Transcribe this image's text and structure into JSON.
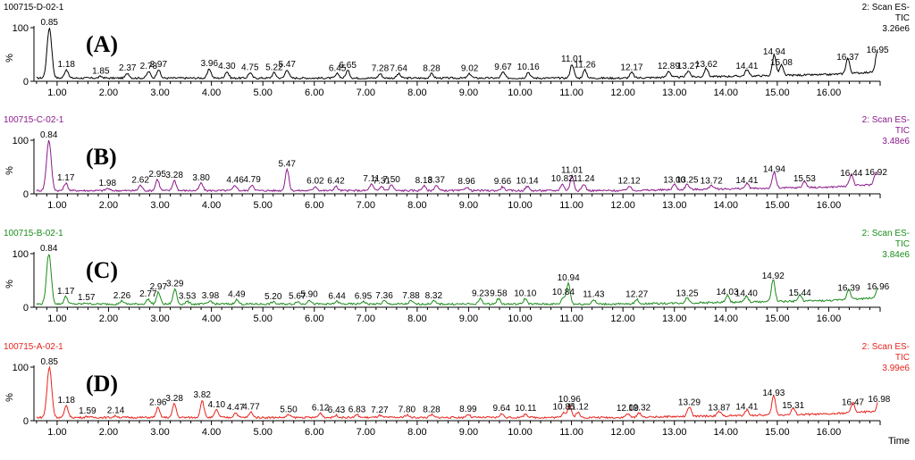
{
  "chart_data": {
    "type": "line",
    "x_axis": {
      "label": "Time",
      "min": 0.55,
      "max": 17.0,
      "ticks": [
        "1.00",
        "2.00",
        "3.00",
        "4.00",
        "5.00",
        "6.00",
        "7.00",
        "8.00",
        "9.00",
        "10.00",
        "11.00",
        "12.00",
        "13.00",
        "14.00",
        "15.00",
        "16.00"
      ]
    },
    "y_axis": {
      "label": "%",
      "ticks": [
        "0",
        "100"
      ],
      "range": [
        0,
        100
      ]
    },
    "panels": [
      {
        "sample": "100715-D-02-1",
        "letter": "(A)",
        "scan_line1": "2: Scan ES-",
        "scan_line2": "TIC",
        "intensity": "3.26e6",
        "color": "#000000",
        "peaks": [
          {
            "t": 0.85,
            "y": 100,
            "label": "0.85"
          },
          {
            "t": 1.18,
            "y": 22,
            "label": "1.18"
          },
          {
            "t": 1.85,
            "y": 9,
            "label": "1.85"
          },
          {
            "t": 2.37,
            "y": 15,
            "label": "2.37"
          },
          {
            "t": 2.78,
            "y": 18,
            "label": "2.78"
          },
          {
            "t": 2.97,
            "y": 22,
            "label": "2.97"
          },
          {
            "t": 3.96,
            "y": 23,
            "label": "3.96"
          },
          {
            "t": 4.3,
            "y": 18,
            "label": "4.30"
          },
          {
            "t": 4.75,
            "y": 16,
            "label": "4.75"
          },
          {
            "t": 5.22,
            "y": 16,
            "label": "5.22"
          },
          {
            "t": 5.47,
            "y": 22,
            "label": "5.47"
          },
          {
            "t": 6.45,
            "y": 14,
            "label": "6.45"
          },
          {
            "t": 6.65,
            "y": 20,
            "label": "6.65"
          },
          {
            "t": 7.28,
            "y": 14,
            "label": "7.28"
          },
          {
            "t": 7.64,
            "y": 14,
            "label": "7.64"
          },
          {
            "t": 8.28,
            "y": 14,
            "label": "8.28"
          },
          {
            "t": 9.02,
            "y": 14,
            "label": "9.02"
          },
          {
            "t": 9.67,
            "y": 17,
            "label": "9.67"
          },
          {
            "t": 10.16,
            "y": 17,
            "label": "10.16"
          },
          {
            "t": 11.01,
            "y": 32,
            "label": "11.01"
          },
          {
            "t": 11.26,
            "y": 21,
            "label": "11.26"
          },
          {
            "t": 12.17,
            "y": 16,
            "label": "12.17"
          },
          {
            "t": 12.89,
            "y": 18,
            "label": "12.89"
          },
          {
            "t": 13.27,
            "y": 18,
            "label": "13.27"
          },
          {
            "t": 13.62,
            "y": 22,
            "label": "13.62"
          },
          {
            "t": 14.41,
            "y": 18,
            "label": "14.41"
          },
          {
            "t": 14.94,
            "y": 45,
            "label": "14.94"
          },
          {
            "t": 15.08,
            "y": 25,
            "label": "15.08"
          },
          {
            "t": 16.37,
            "y": 35,
            "label": "16.37"
          },
          {
            "t": 16.95,
            "y": 48,
            "label": "16.95"
          }
        ]
      },
      {
        "sample": "100715-C-02-1",
        "letter": "(B)",
        "scan_line1": "2: Scan ES-",
        "scan_line2": "TIC",
        "intensity": "3.48e6",
        "color": "#8b1a8b",
        "peaks": [
          {
            "t": 0.84,
            "y": 100,
            "label": "0.84"
          },
          {
            "t": 1.17,
            "y": 20,
            "label": "1.17"
          },
          {
            "t": 1.98,
            "y": 10,
            "label": "1.98"
          },
          {
            "t": 2.62,
            "y": 16,
            "label": "2.62"
          },
          {
            "t": 2.95,
            "y": 27,
            "label": "2.95"
          },
          {
            "t": 3.28,
            "y": 25,
            "label": "3.28"
          },
          {
            "t": 3.8,
            "y": 20,
            "label": "3.80"
          },
          {
            "t": 4.46,
            "y": 16,
            "label": "4.46"
          },
          {
            "t": 4.79,
            "y": 17,
            "label": "4.79"
          },
          {
            "t": 5.47,
            "y": 46,
            "label": "5.47"
          },
          {
            "t": 6.02,
            "y": 14,
            "label": "6.02"
          },
          {
            "t": 6.42,
            "y": 14,
            "label": "6.42"
          },
          {
            "t": 7.11,
            "y": 18,
            "label": "7.11"
          },
          {
            "t": 7.31,
            "y": 14,
            "label": "7.31"
          },
          {
            "t": 7.5,
            "y": 17,
            "label": "7.50"
          },
          {
            "t": 8.13,
            "y": 15,
            "label": "8.13"
          },
          {
            "t": 8.37,
            "y": 16,
            "label": "8.37"
          },
          {
            "t": 8.96,
            "y": 13,
            "label": "8.96"
          },
          {
            "t": 9.66,
            "y": 13,
            "label": "9.66"
          },
          {
            "t": 10.14,
            "y": 14,
            "label": "10.14"
          },
          {
            "t": 10.82,
            "y": 18,
            "label": "10.82"
          },
          {
            "t": 11.01,
            "y": 34,
            "label": "11.01"
          },
          {
            "t": 11.24,
            "y": 18,
            "label": "11.24"
          },
          {
            "t": 12.12,
            "y": 14,
            "label": "12.12"
          },
          {
            "t": 13.0,
            "y": 16,
            "label": "13.00"
          },
          {
            "t": 13.25,
            "y": 16,
            "label": "13.25"
          },
          {
            "t": 13.72,
            "y": 14,
            "label": "13.72"
          },
          {
            "t": 14.41,
            "y": 15,
            "label": "14.41"
          },
          {
            "t": 14.94,
            "y": 36,
            "label": "14.94"
          },
          {
            "t": 15.53,
            "y": 18,
            "label": "15.53"
          },
          {
            "t": 16.44,
            "y": 28,
            "label": "16.44"
          },
          {
            "t": 16.92,
            "y": 30,
            "label": "16.92"
          }
        ]
      },
      {
        "sample": "100715-B-02-1",
        "letter": "(C)",
        "scan_line1": "2: Scan ES-",
        "scan_line2": "TIC",
        "intensity": "3.84e6",
        "color": "#1a8c1a",
        "peaks": [
          {
            "t": 0.84,
            "y": 100,
            "label": "0.84"
          },
          {
            "t": 1.17,
            "y": 20,
            "label": "1.17"
          },
          {
            "t": 1.57,
            "y": 8,
            "label": "1.57"
          },
          {
            "t": 2.26,
            "y": 12,
            "label": "2.26"
          },
          {
            "t": 2.77,
            "y": 15,
            "label": "2.77"
          },
          {
            "t": 2.97,
            "y": 28,
            "label": "2.97"
          },
          {
            "t": 3.29,
            "y": 34,
            "label": "3.29"
          },
          {
            "t": 3.53,
            "y": 11,
            "label": "3.53"
          },
          {
            "t": 3.98,
            "y": 12,
            "label": "3.98"
          },
          {
            "t": 4.49,
            "y": 14,
            "label": "4.49"
          },
          {
            "t": 5.2,
            "y": 10,
            "label": "5.20"
          },
          {
            "t": 5.67,
            "y": 11,
            "label": "5.67"
          },
          {
            "t": 5.9,
            "y": 14,
            "label": "5.90"
          },
          {
            "t": 6.44,
            "y": 11,
            "label": "6.44"
          },
          {
            "t": 6.95,
            "y": 11,
            "label": "6.95"
          },
          {
            "t": 7.36,
            "y": 12,
            "label": "7.36"
          },
          {
            "t": 7.88,
            "y": 12,
            "label": "7.88"
          },
          {
            "t": 8.32,
            "y": 12,
            "label": "8.32"
          },
          {
            "t": 9.23,
            "y": 16,
            "label": "9.23"
          },
          {
            "t": 9.58,
            "y": 16,
            "label": "9.58"
          },
          {
            "t": 10.1,
            "y": 16,
            "label": "10.10"
          },
          {
            "t": 10.84,
            "y": 18,
            "label": "10.84"
          },
          {
            "t": 10.94,
            "y": 45,
            "label": "10.94"
          },
          {
            "t": 11.43,
            "y": 14,
            "label": "11.43"
          },
          {
            "t": 12.27,
            "y": 14,
            "label": "12.27"
          },
          {
            "t": 13.25,
            "y": 16,
            "label": "13.25"
          },
          {
            "t": 14.03,
            "y": 18,
            "label": "14.03"
          },
          {
            "t": 14.4,
            "y": 16,
            "label": "14.40"
          },
          {
            "t": 14.92,
            "y": 48,
            "label": "14.92"
          },
          {
            "t": 15.44,
            "y": 17,
            "label": "15.44"
          },
          {
            "t": 16.39,
            "y": 26,
            "label": "16.39"
          },
          {
            "t": 16.96,
            "y": 28,
            "label": "16.96"
          }
        ]
      },
      {
        "sample": "100715-A-02-1",
        "letter": "(D)",
        "scan_line1": "2: Scan ES-",
        "scan_line2": "TIC",
        "intensity": "3.99e6",
        "color": "#e8231c",
        "peaks": [
          {
            "t": 0.85,
            "y": 100,
            "label": "0.85"
          },
          {
            "t": 1.18,
            "y": 28,
            "label": "1.18"
          },
          {
            "t": 1.59,
            "y": 8,
            "label": "1.59"
          },
          {
            "t": 2.14,
            "y": 9,
            "label": "2.14"
          },
          {
            "t": 2.96,
            "y": 24,
            "label": "2.96"
          },
          {
            "t": 3.28,
            "y": 32,
            "label": "3.28"
          },
          {
            "t": 3.82,
            "y": 38,
            "label": "3.82"
          },
          {
            "t": 4.1,
            "y": 20,
            "label": "4.10"
          },
          {
            "t": 4.47,
            "y": 15,
            "label": "4.47"
          },
          {
            "t": 4.77,
            "y": 16,
            "label": "4.77"
          },
          {
            "t": 5.5,
            "y": 11,
            "label": "5.50"
          },
          {
            "t": 6.12,
            "y": 14,
            "label": "6.12"
          },
          {
            "t": 6.43,
            "y": 10,
            "label": "6.43"
          },
          {
            "t": 6.83,
            "y": 11,
            "label": "6.83"
          },
          {
            "t": 7.27,
            "y": 10,
            "label": "7.27"
          },
          {
            "t": 7.8,
            "y": 11,
            "label": "7.80"
          },
          {
            "t": 8.28,
            "y": 11,
            "label": "8.28"
          },
          {
            "t": 8.99,
            "y": 12,
            "label": "8.99"
          },
          {
            "t": 9.64,
            "y": 13,
            "label": "9.64"
          },
          {
            "t": 10.11,
            "y": 13,
            "label": "10.11"
          },
          {
            "t": 10.85,
            "y": 16,
            "label": "10.85"
          },
          {
            "t": 10.96,
            "y": 30,
            "label": "10.96"
          },
          {
            "t": 11.12,
            "y": 16,
            "label": "11.12"
          },
          {
            "t": 12.09,
            "y": 13,
            "label": "12.09"
          },
          {
            "t": 12.32,
            "y": 14,
            "label": "12.32"
          },
          {
            "t": 13.29,
            "y": 24,
            "label": "13.29"
          },
          {
            "t": 13.87,
            "y": 14,
            "label": "13.87"
          },
          {
            "t": 14.41,
            "y": 16,
            "label": "14.41"
          },
          {
            "t": 14.93,
            "y": 42,
            "label": "14.93"
          },
          {
            "t": 15.31,
            "y": 18,
            "label": "15.31"
          },
          {
            "t": 16.47,
            "y": 24,
            "label": "16.47"
          },
          {
            "t": 16.98,
            "y": 30,
            "label": "16.98"
          }
        ]
      }
    ]
  }
}
